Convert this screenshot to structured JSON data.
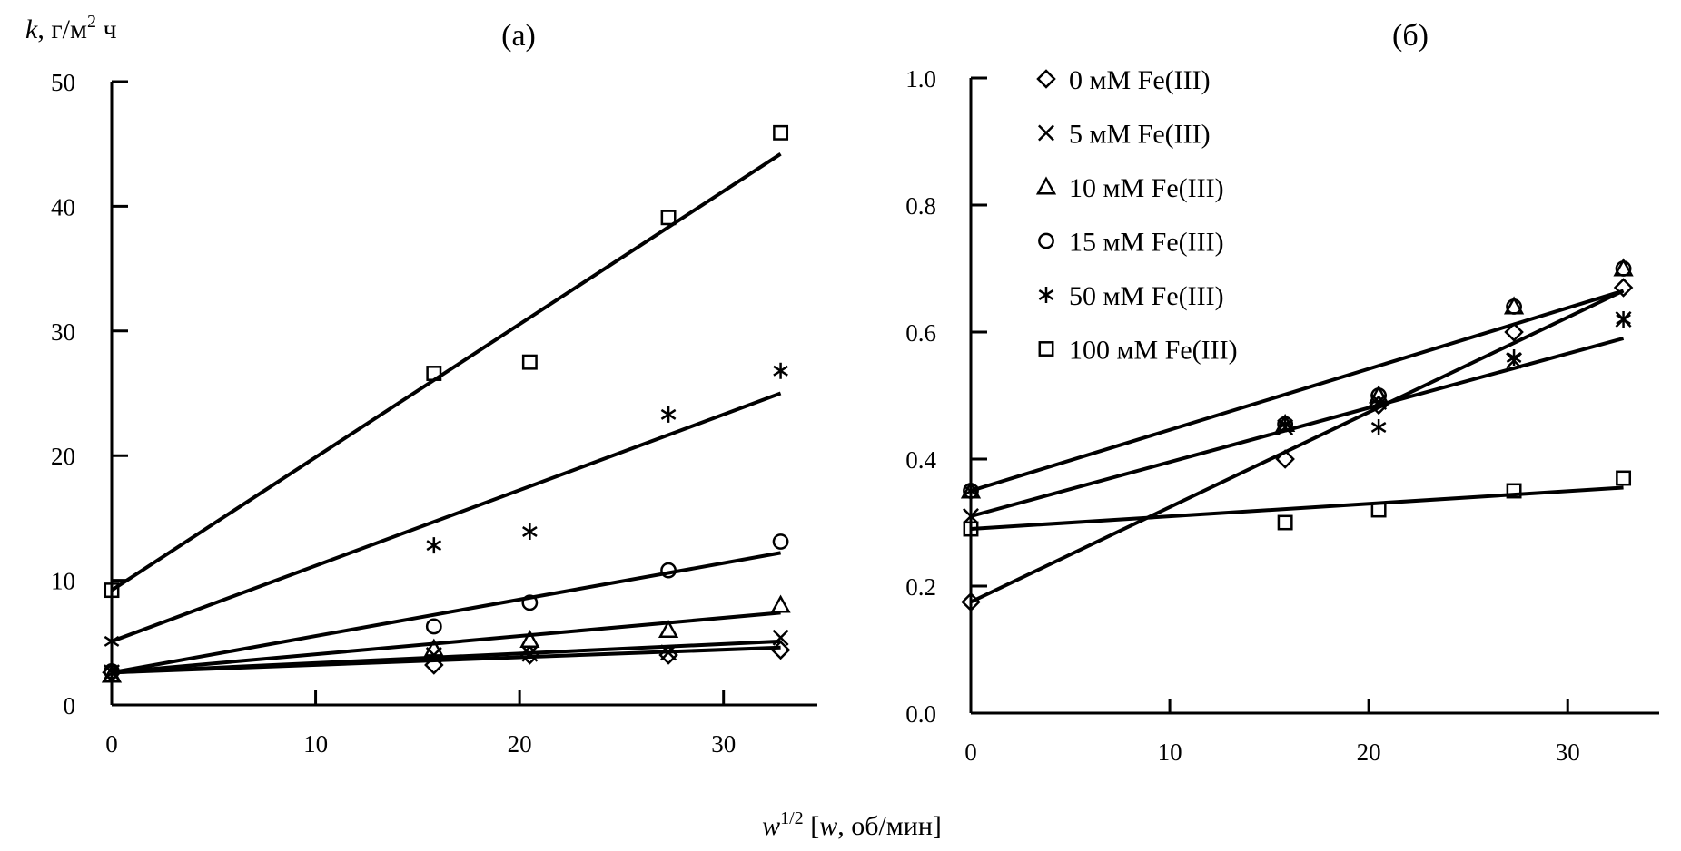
{
  "chart_data": [
    {
      "panel": "left",
      "type": "scatter",
      "title": "(а)",
      "ylabel": "k, г/м² ч",
      "ylabel_parts": {
        "var": "k",
        "unit": ", г/м",
        "sup": "2",
        "rest": " ч"
      },
      "xlabel": "w^{1/2} [w, об/мин]",
      "xlim": [
        0,
        34.6
      ],
      "ylim": [
        0,
        50
      ],
      "xticks": [
        0,
        10,
        20,
        30
      ],
      "yticks": [
        0,
        10,
        20,
        30,
        40,
        50
      ],
      "xtick_labels": [
        "0",
        "10",
        "20",
        "30"
      ],
      "ytick_labels": [
        "0",
        "10",
        "20",
        "30",
        "40",
        "50"
      ],
      "grid": false,
      "x": [
        0,
        15.8,
        20.5,
        27.3,
        32.8
      ],
      "series": [
        {
          "name": "0 мМ Fe(III)",
          "marker": "diamond",
          "values": [
            2.6,
            3.2,
            4.0,
            4.0,
            4.4
          ],
          "fit": [
            2.6,
            4.6
          ]
        },
        {
          "name": "5 мМ Fe(III)",
          "marker": "x",
          "values": [
            2.6,
            4.0,
            4.1,
            4.2,
            5.4
          ],
          "fit": [
            2.6,
            5.1
          ]
        },
        {
          "name": "10 мМ Fe(III)",
          "marker": "triangle",
          "values": [
            2.4,
            4.5,
            5.2,
            6.0,
            8.0
          ],
          "fit": [
            2.6,
            7.4
          ]
        },
        {
          "name": "15 мМ Fe(III)",
          "marker": "circle",
          "values": [
            2.7,
            6.3,
            8.2,
            10.8,
            13.1
          ],
          "fit": [
            2.6,
            12.2
          ]
        },
        {
          "name": "50 мМ Fe(III)",
          "marker": "star",
          "values": [
            5.1,
            12.8,
            13.9,
            23.3,
            26.8
          ],
          "fit": [
            5.1,
            25.0
          ]
        },
        {
          "name": "100 мМ Fe(III)",
          "marker": "square",
          "values": [
            9.2,
            26.6,
            27.5,
            39.1,
            45.9
          ],
          "fit": [
            9.2,
            44.2
          ]
        }
      ]
    },
    {
      "panel": "right",
      "type": "scatter",
      "title": "(б)",
      "xlabel": "w^{1/2} [w, об/мин]",
      "xlim": [
        0,
        34.6
      ],
      "ylim": [
        0,
        1.0
      ],
      "xticks": [
        0,
        10,
        20,
        30
      ],
      "yticks": [
        0,
        0.2,
        0.4,
        0.6,
        0.8,
        1.0
      ],
      "xtick_labels": [
        "0",
        "10",
        "20",
        "30"
      ],
      "ytick_labels": [
        "0.0",
        "0.2",
        "0.4",
        "0.6",
        "0.8",
        "1.0"
      ],
      "grid": false,
      "legend": "top-left",
      "x": [
        0,
        15.8,
        20.5,
        27.3,
        32.8
      ],
      "series": [
        {
          "name": "0 мМ Fe(III)",
          "marker": "diamond",
          "values": [
            0.175,
            0.4,
            0.485,
            0.6,
            0.67
          ],
          "fit": [
            0.175,
            0.665
          ]
        },
        {
          "name": "5 мМ Fe(III)",
          "marker": "x",
          "values": [
            0.31,
            0.45,
            0.49,
            0.555,
            0.62
          ],
          "fit": [
            0.31,
            0.59
          ]
        },
        {
          "name": "10 мМ Fe(III)",
          "marker": "triangle",
          "values": [
            0.35,
            0.455,
            0.5,
            0.64,
            0.7
          ],
          "fit": [
            0.35,
            0.665
          ]
        },
        {
          "name": "15 мМ Fe(III)",
          "marker": "circle",
          "values": [
            0.35,
            0.455,
            0.5,
            0.64,
            0.7
          ],
          "fit": null
        },
        {
          "name": "50 мМ Fe(III)",
          "marker": "star",
          "values": [
            0.35,
            0.455,
            0.45,
            0.56,
            0.62
          ],
          "fit": null
        },
        {
          "name": "100 мМ Fe(III)",
          "marker": "square",
          "values": [
            0.29,
            0.3,
            0.32,
            0.35,
            0.37
          ],
          "fit": [
            0.29,
            0.355
          ]
        }
      ]
    }
  ],
  "shared_xlabel": {
    "var": "w",
    "sup": "1/2",
    "rest_open": " [",
    "var2": "w",
    "rest": ", об/мин]"
  },
  "legend": [
    {
      "marker": "diamond",
      "label": "0 мМ Fe(III)"
    },
    {
      "marker": "x",
      "label": "5 мМ Fe(III)"
    },
    {
      "marker": "triangle",
      "label": "10 мМ Fe(III)"
    },
    {
      "marker": "circle",
      "label": "15 мМ Fe(III)"
    },
    {
      "marker": "star",
      "label": "50 мМ Fe(III)"
    },
    {
      "marker": "square",
      "label": "100 мМ Fe(III)"
    }
  ]
}
